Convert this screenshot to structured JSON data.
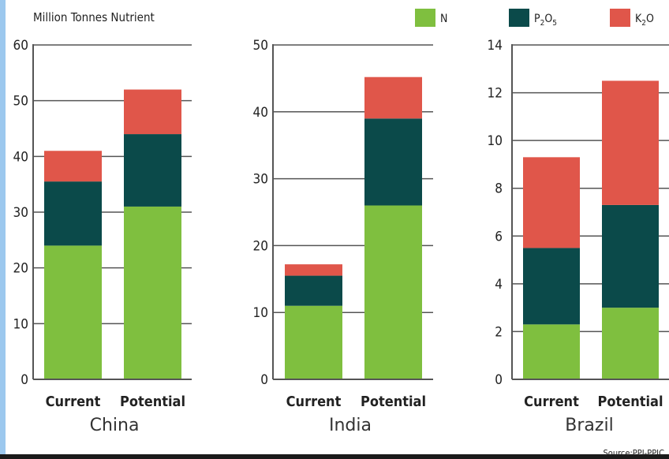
{
  "units_label": "Million Tonnes Nutrient",
  "source": "Source:PPI-PPIC",
  "colors": {
    "N": "#7fbf3f",
    "P2O5": "#0b4a4a",
    "K2O": "#e0564a",
    "axis": "#555555"
  },
  "legend": [
    {
      "key": "N",
      "label": "N"
    },
    {
      "key": "P2O5",
      "label": "P2O5"
    },
    {
      "key": "K2O",
      "label": "K2O"
    }
  ],
  "chart_data": [
    {
      "type": "bar",
      "stacked": true,
      "group": "China",
      "categories": [
        "Current",
        "Potential"
      ],
      "ylim": [
        0,
        60
      ],
      "yticks": [
        0,
        10,
        20,
        30,
        40,
        50,
        60
      ],
      "series": [
        {
          "name": "N",
          "values": [
            24,
            31
          ]
        },
        {
          "name": "P2O5",
          "values": [
            11.5,
            13
          ]
        },
        {
          "name": "K2O",
          "values": [
            5.5,
            8
          ]
        }
      ]
    },
    {
      "type": "bar",
      "stacked": true,
      "group": "India",
      "categories": [
        "Current",
        "Potential"
      ],
      "ylim": [
        0,
        50
      ],
      "yticks": [
        0,
        10,
        20,
        30,
        40,
        50
      ],
      "series": [
        {
          "name": "N",
          "values": [
            11,
            26
          ]
        },
        {
          "name": "P2O5",
          "values": [
            4.5,
            13
          ]
        },
        {
          "name": "K2O",
          "values": [
            1.7,
            6.2
          ]
        }
      ]
    },
    {
      "type": "bar",
      "stacked": true,
      "group": "Brazil",
      "categories": [
        "Current",
        "Potential"
      ],
      "ylim": [
        0,
        14
      ],
      "yticks": [
        0,
        2,
        4,
        6,
        8,
        10,
        12,
        14
      ],
      "series": [
        {
          "name": "N",
          "values": [
            2.3,
            3
          ]
        },
        {
          "name": "P2O5",
          "values": [
            3.2,
            4.3
          ]
        },
        {
          "name": "K2O",
          "values": [
            3.8,
            5.2
          ]
        }
      ]
    }
  ]
}
